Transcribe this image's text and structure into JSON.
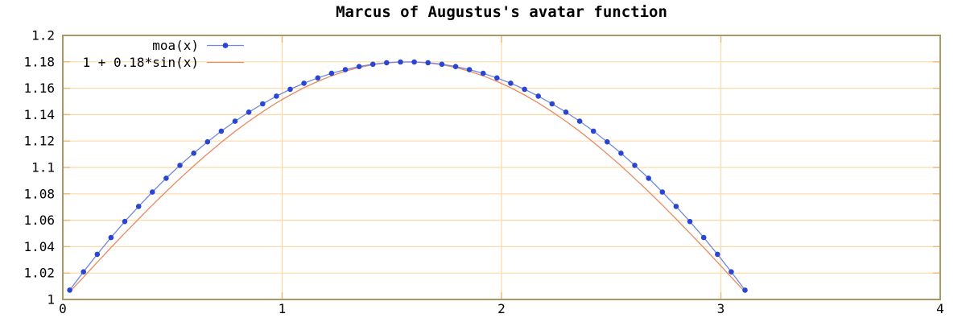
{
  "chart_data": {
    "type": "line",
    "title": "Marcus of Augustus's avatar function",
    "xlabel": "",
    "ylabel": "",
    "xlim": [
      0,
      4
    ],
    "ylim": [
      1,
      1.2
    ],
    "grid": true,
    "legend": {
      "position": "top-left",
      "entries": [
        "moa(x)",
        "1 + 0.18*sin(x)"
      ]
    },
    "x_ticks": {
      "values": [
        0,
        1,
        2,
        3,
        4
      ],
      "labels": [
        "0",
        "1",
        "2",
        "3",
        "4"
      ]
    },
    "y_ticks": {
      "values": [
        1,
        1.02,
        1.04,
        1.06,
        1.08,
        1.1,
        1.12,
        1.14,
        1.16,
        1.18,
        1.2
      ],
      "labels": [
        "1",
        "1.02",
        "1.04",
        "1.06",
        "1.08",
        "1.1",
        "1.12",
        "1.14",
        "1.16",
        "1.18",
        "1.2"
      ]
    },
    "colors": {
      "background": "#ffffff",
      "border": "#a99865",
      "grid": "#ffd9a6",
      "tick": "#edb877",
      "text": "#000000"
    },
    "series": [
      {
        "name": "moa(x)",
        "style": "linespoints",
        "line_color": "#6f88e0",
        "marker": "circle",
        "marker_color": "#2946d2",
        "x": [
          0.0314,
          0.0942,
          0.1571,
          0.2199,
          0.2827,
          0.3456,
          0.4084,
          0.4712,
          0.5341,
          0.5969,
          0.6597,
          0.7226,
          0.7854,
          0.8482,
          0.9111,
          0.9739,
          1.0367,
          1.0996,
          1.1624,
          1.2252,
          1.2881,
          1.3509,
          1.4137,
          1.4765,
          1.5394,
          1.6022,
          1.665,
          1.7279,
          1.7907,
          1.8535,
          1.9164,
          1.9792,
          2.042,
          2.1049,
          2.1677,
          2.2305,
          2.2934,
          2.3562,
          2.419,
          2.4819,
          2.5447,
          2.6075,
          2.6704,
          2.7332,
          2.796,
          2.8588,
          2.9217,
          2.9845,
          3.0473,
          3.1102
        ],
        "y": [
          1.0071,
          1.0209,
          1.0342,
          1.0469,
          1.059,
          1.0705,
          1.0814,
          1.0918,
          1.1016,
          1.1108,
          1.1194,
          1.1275,
          1.135,
          1.1419,
          1.1482,
          1.154,
          1.1592,
          1.1638,
          1.1678,
          1.1713,
          1.1741,
          1.1764,
          1.1782,
          1.1793,
          1.1799,
          1.1799,
          1.1793,
          1.1782,
          1.1764,
          1.1741,
          1.1713,
          1.1678,
          1.1638,
          1.1592,
          1.154,
          1.1482,
          1.1419,
          1.135,
          1.1275,
          1.1194,
          1.1108,
          1.1016,
          1.0918,
          1.0814,
          1.0705,
          1.059,
          1.0469,
          1.0342,
          1.0209,
          1.0071
        ]
      },
      {
        "name": "1 + 0.18*sin(x)",
        "style": "lines",
        "line_color": "#e78b60",
        "x": [
          0.0314,
          0.0942,
          0.1571,
          0.2199,
          0.2827,
          0.3456,
          0.4084,
          0.4712,
          0.5341,
          0.5969,
          0.6597,
          0.7226,
          0.7854,
          0.8482,
          0.9111,
          0.9739,
          1.0367,
          1.0996,
          1.1624,
          1.2252,
          1.2881,
          1.3509,
          1.4137,
          1.4765,
          1.5394,
          1.6022,
          1.665,
          1.7279,
          1.7907,
          1.8535,
          1.9164,
          1.9792,
          2.042,
          2.1049,
          2.1677,
          2.2305,
          2.2934,
          2.3562,
          2.419,
          2.4819,
          2.5447,
          2.6075,
          2.6704,
          2.7332,
          2.796,
          2.8588,
          2.9217,
          2.9845,
          3.0473,
          3.1102
        ],
        "y": [
          1.0057,
          1.0169,
          1.0282,
          1.0393,
          1.0502,
          1.061,
          1.0715,
          1.0817,
          1.0916,
          1.1012,
          1.1103,
          1.119,
          1.1273,
          1.135,
          1.1422,
          1.1489,
          1.1549,
          1.1604,
          1.1652,
          1.1694,
          1.1729,
          1.1757,
          1.1778,
          1.1792,
          1.1799,
          1.1799,
          1.1792,
          1.1778,
          1.1757,
          1.1729,
          1.1694,
          1.1652,
          1.1604,
          1.1549,
          1.1489,
          1.1422,
          1.135,
          1.1273,
          1.119,
          1.1103,
          1.1012,
          1.0916,
          1.0817,
          1.0715,
          1.061,
          1.0502,
          1.0393,
          1.0282,
          1.0169,
          1.0057
        ]
      }
    ]
  }
}
